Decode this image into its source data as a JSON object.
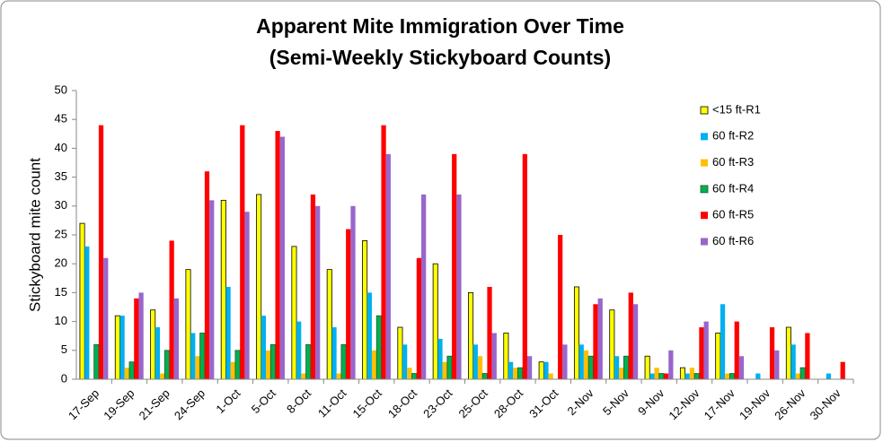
{
  "chart_data": {
    "type": "bar",
    "title": "Apparent Mite Immigration Over Time",
    "subtitle": "(Semi-Weekly Stickyboard Counts)",
    "y_label": "Stickyboard mite count",
    "categories": [
      "17-Sep",
      "19-Sep",
      "21-Sep",
      "24-Sep",
      "1-Oct",
      "5-Oct",
      "8-Oct",
      "11-Oct",
      "15-Oct",
      "18-Oct",
      "23-Oct",
      "25-Oct",
      "28-Oct",
      "31-Oct",
      "2-Nov",
      "5-Nov",
      "9-Nov",
      "12-Nov",
      "17-Nov",
      "19-Nov",
      "26-Nov",
      "30-Nov"
    ],
    "series": [
      {
        "name": "<15 ft-R1",
        "color": "#ffff00",
        "values": [
          27,
          11,
          12,
          19,
          31,
          32,
          23,
          19,
          24,
          9,
          20,
          15,
          8,
          3,
          16,
          12,
          4,
          2,
          8,
          0,
          9,
          0
        ]
      },
      {
        "name": "60 ft-R2",
        "color": "#00b0f0",
        "values": [
          23,
          11,
          9,
          8,
          16,
          11,
          10,
          9,
          15,
          6,
          7,
          6,
          3,
          3,
          6,
          4,
          1,
          1,
          13,
          1,
          6,
          1
        ]
      },
      {
        "name": "60 ft-R3",
        "color": "#ffc000",
        "values": [
          0,
          2,
          1,
          4,
          3,
          5,
          1,
          1,
          5,
          2,
          3,
          4,
          2,
          1,
          5,
          2,
          2,
          2,
          1,
          0,
          1,
          0
        ]
      },
      {
        "name": "60 ft-R4",
        "color": "#00b050",
        "values": [
          6,
          3,
          5,
          8,
          5,
          6,
          6,
          6,
          11,
          1,
          4,
          1,
          2,
          0,
          4,
          4,
          1,
          1,
          1,
          0,
          2,
          0
        ]
      },
      {
        "name": "60 ft-R5",
        "color": "#ff0000",
        "values": [
          44,
          14,
          24,
          36,
          44,
          43,
          32,
          26,
          44,
          21,
          39,
          16,
          39,
          25,
          13,
          15,
          1,
          9,
          10,
          9,
          8,
          3
        ]
      },
      {
        "name": "60 ft-R6",
        "color": "#9966cc",
        "values": [
          21,
          15,
          14,
          31,
          29,
          42,
          30,
          30,
          39,
          32,
          32,
          8,
          4,
          6,
          14,
          13,
          5,
          10,
          4,
          5,
          0,
          0
        ]
      }
    ],
    "ylim": [
      0,
      50
    ],
    "yticks": [
      0,
      5,
      10,
      15,
      20,
      25,
      30,
      35,
      40,
      45,
      50
    ],
    "grid": false,
    "legend": "right"
  }
}
